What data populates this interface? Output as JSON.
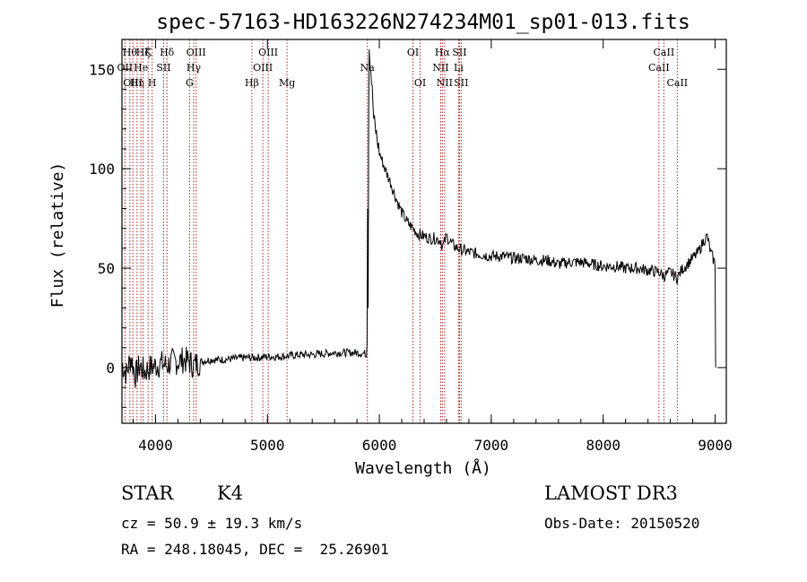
{
  "chart_data": {
    "type": "line",
    "title": "spec-57163-HD163226N274234M01_sp01-013.fits",
    "xlabel": "Wavelength (Å)",
    "ylabel": "Flux (relative)",
    "xlim": [
      3700,
      9100
    ],
    "ylim": [
      -28,
      165
    ],
    "x_ticks": [
      4000,
      5000,
      6000,
      7000,
      8000,
      9000
    ],
    "y_ticks": [
      0,
      50,
      100,
      150
    ],
    "grid": false,
    "colors": {
      "spectrum": "#000000",
      "lines": "#b22222"
    },
    "spectrum": [
      [
        3700,
        2
      ],
      [
        3740,
        -3
      ],
      [
        3780,
        5
      ],
      [
        3820,
        -4
      ],
      [
        3860,
        1
      ],
      [
        3900,
        -2
      ],
      [
        3950,
        0
      ],
      [
        4000,
        1
      ],
      [
        4050,
        2
      ],
      [
        4100,
        1
      ],
      [
        4150,
        3
      ],
      [
        4200,
        3
      ],
      [
        4250,
        4
      ],
      [
        4300,
        3
      ],
      [
        4340,
        1
      ],
      [
        4400,
        3
      ],
      [
        4500,
        4
      ],
      [
        4600,
        4
      ],
      [
        4700,
        4.5
      ],
      [
        4800,
        5
      ],
      [
        4900,
        5
      ],
      [
        5000,
        5.5
      ],
      [
        5100,
        5.5
      ],
      [
        5200,
        6
      ],
      [
        5300,
        6.5
      ],
      [
        5400,
        6.5
      ],
      [
        5500,
        7
      ],
      [
        5600,
        7.5
      ],
      [
        5700,
        7.5
      ],
      [
        5800,
        7.5
      ],
      [
        5880,
        7
      ],
      [
        5890,
        12
      ],
      [
        5895,
        80
      ],
      [
        5900,
        30
      ],
      [
        5905,
        130
      ],
      [
        5910,
        160
      ],
      [
        5930,
        145
      ],
      [
        5950,
        125
      ],
      [
        5980,
        115
      ],
      [
        6000,
        108
      ],
      [
        6050,
        100
      ],
      [
        6100,
        93
      ],
      [
        6150,
        85
      ],
      [
        6200,
        78
      ],
      [
        6250,
        73
      ],
      [
        6300,
        70
      ],
      [
        6350,
        67
      ],
      [
        6400,
        66
      ],
      [
        6450,
        65
      ],
      [
        6500,
        65
      ],
      [
        6550,
        64
      ],
      [
        6562,
        60
      ],
      [
        6600,
        66
      ],
      [
        6650,
        62
      ],
      [
        6700,
        60
      ],
      [
        6800,
        58
      ],
      [
        6900,
        57
      ],
      [
        7000,
        56
      ],
      [
        7100,
        56
      ],
      [
        7200,
        55
      ],
      [
        7300,
        55
      ],
      [
        7400,
        54
      ],
      [
        7500,
        54
      ],
      [
        7600,
        52
      ],
      [
        7700,
        53
      ],
      [
        7800,
        53
      ],
      [
        7900,
        52
      ],
      [
        8000,
        51
      ],
      [
        8100,
        51
      ],
      [
        8200,
        50
      ],
      [
        8300,
        50
      ],
      [
        8400,
        49
      ],
      [
        8500,
        48
      ],
      [
        8542,
        46
      ],
      [
        8600,
        48
      ],
      [
        8662,
        45
      ],
      [
        8700,
        49
      ],
      [
        8750,
        52
      ],
      [
        8800,
        55
      ],
      [
        8850,
        58
      ],
      [
        8900,
        64
      ],
      [
        8930,
        66
      ],
      [
        8960,
        58
      ],
      [
        9000,
        52
      ],
      [
        9005,
        0
      ]
    ],
    "lines": [
      {
        "x": 3727,
        "labels": [
          "OII"
        ],
        "row": 1
      },
      {
        "x": 3771,
        "labels": [
          "Hθ"
        ],
        "row": 0
      },
      {
        "x": 3798,
        "labels": [
          "OIII"
        ],
        "row": 2
      },
      {
        "x": 3835,
        "labels": [
          "Hη"
        ],
        "row": 2
      },
      {
        "x": 3869,
        "labels": [
          "He"
        ],
        "row": 1
      },
      {
        "x": 3889,
        "labels": [
          "Hζ"
        ],
        "row": 0
      },
      {
        "x": 3934,
        "labels": [
          "K"
        ],
        "row": 0
      },
      {
        "x": 3970,
        "labels": [
          "H"
        ],
        "row": 2
      },
      {
        "x": 4072,
        "labels": [
          "SII"
        ],
        "row": 1
      },
      {
        "x": 4102,
        "labels": [
          "Hδ"
        ],
        "row": 0
      },
      {
        "x": 4304,
        "labels": [
          "G"
        ],
        "row": 2
      },
      {
        "x": 4341,
        "labels": [
          "Hγ"
        ],
        "row": 1
      },
      {
        "x": 4363,
        "labels": [
          "OIII"
        ],
        "row": 0
      },
      {
        "x": 4861,
        "labels": [
          "Hβ"
        ],
        "row": 2
      },
      {
        "x": 4959,
        "labels": [
          "OIII"
        ],
        "row": 1
      },
      {
        "x": 5007,
        "labels": [
          "OIII"
        ],
        "row": 0
      },
      {
        "x": 5175,
        "labels": [
          "Mg"
        ],
        "row": 2
      },
      {
        "x": 5893,
        "labels": [
          "Na"
        ],
        "row": 1
      },
      {
        "x": 6300,
        "labels": [
          "OI"
        ],
        "row": 0
      },
      {
        "x": 6364,
        "labels": [
          "OI"
        ],
        "row": 2
      },
      {
        "x": 6548,
        "labels": [
          "NII"
        ],
        "row": 1
      },
      {
        "x": 6563,
        "labels": [
          "Hα"
        ],
        "row": 0
      },
      {
        "x": 6583,
        "labels": [
          "NII"
        ],
        "row": 2
      },
      {
        "x": 6708,
        "labels": [
          "Li"
        ],
        "row": 1
      },
      {
        "x": 6716,
        "labels": [
          "SII"
        ],
        "row": 0
      },
      {
        "x": 6731,
        "labels": [
          "SII"
        ],
        "row": 2
      },
      {
        "x": 8498,
        "labels": [
          "CaII"
        ],
        "row": 1
      },
      {
        "x": 8542,
        "labels": [
          "CaII"
        ],
        "row": 0
      },
      {
        "x": 8662,
        "labels": [
          "CaII"
        ],
        "row": 2
      }
    ]
  },
  "info": {
    "object_class": "STAR",
    "subclass": "K4",
    "survey": "LAMOST DR3",
    "cz": "cz = 50.9 ± 19.3 km/s",
    "obs_date": "Obs-Date: 20150520",
    "coords": "RA = 248.18045, DEC =  25.26901"
  }
}
